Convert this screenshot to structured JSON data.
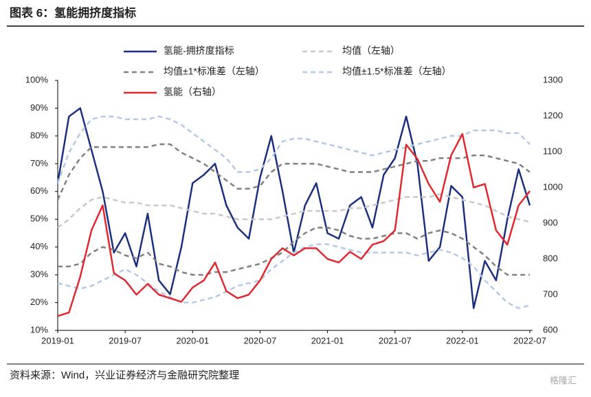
{
  "header": {
    "title": "图表 6：氢能拥挤度指标"
  },
  "footer": {
    "source": "资料来源：Wind，兴业证券经济与金融研究院整理",
    "watermark": "格隆汇"
  },
  "chart_data": {
    "type": "line",
    "categories": [
      "2019-01",
      null,
      null,
      null,
      null,
      null,
      "2019-07",
      null,
      null,
      null,
      null,
      null,
      "2020-01",
      null,
      null,
      null,
      null,
      null,
      "2020-07",
      null,
      null,
      null,
      null,
      null,
      "2021-01",
      null,
      null,
      null,
      null,
      null,
      "2021-07",
      null,
      null,
      null,
      null,
      null,
      "2022-01",
      null,
      null,
      null,
      null,
      null,
      "2022-07"
    ],
    "ylim": [
      10,
      100
    ],
    "yticks": [
      {
        "value": 10,
        "label": "10%"
      },
      {
        "value": 20,
        "label": "20%"
      },
      {
        "value": 30,
        "label": "30%"
      },
      {
        "value": 40,
        "label": "40%"
      },
      {
        "value": 50,
        "label": "50%"
      },
      {
        "value": 60,
        "label": "60%"
      },
      {
        "value": 70,
        "label": "70%"
      },
      {
        "value": 80,
        "label": "80%"
      },
      {
        "value": 90,
        "label": "90%"
      },
      {
        "value": 100,
        "label": "100%"
      }
    ],
    "y2lim": [
      600,
      1300
    ],
    "y2ticks": [
      600,
      700,
      800,
      900,
      1000,
      1100,
      1200,
      1300
    ],
    "series": [
      {
        "name": "氢能-拥挤度指标",
        "color": "#1a2f80",
        "style": "solid",
        "values": [
          63,
          87,
          90,
          75,
          60,
          38,
          45,
          33,
          52,
          28,
          23,
          40,
          63,
          66,
          70,
          55,
          47,
          43,
          65,
          80,
          60,
          38,
          55,
          63,
          45,
          43,
          55,
          58,
          47,
          66,
          72,
          87,
          70,
          35,
          40,
          62,
          58,
          18,
          35,
          28,
          50,
          68,
          55
        ]
      },
      {
        "name": "均值（左轴）",
        "color": "#c8c8c8",
        "style": "dashed",
        "values": [
          47,
          50,
          54,
          57,
          58,
          57,
          56,
          56,
          55,
          55,
          55,
          54,
          53,
          52,
          52,
          51,
          50,
          50,
          50,
          50,
          51,
          52,
          53,
          53,
          53,
          53,
          54,
          54,
          55,
          56,
          57,
          58,
          58,
          58,
          59,
          58,
          57,
          56,
          55,
          53,
          51,
          50,
          49
        ]
      },
      {
        "name": "均值±1*标准差（左轴）",
        "color": "#808080",
        "style": "dashed",
        "values": [
          57,
          66,
          72,
          76,
          76,
          76,
          76,
          76,
          76,
          77,
          77,
          74,
          72,
          70,
          67,
          64,
          61,
          61,
          62,
          67,
          70,
          70,
          70,
          70,
          69,
          68,
          67,
          67,
          67,
          68,
          69,
          70,
          71,
          71,
          72,
          72,
          72,
          73,
          73,
          72,
          71,
          70,
          67
        ]
      },
      {
        "name": "均值±1*标准差（左轴）",
        "color": "#808080",
        "style": "dashed",
        "values": [
          33,
          33,
          34,
          38,
          40,
          39,
          37,
          36,
          38,
          34,
          33,
          31,
          30,
          30,
          31,
          31,
          32,
          33,
          34,
          36,
          38,
          42,
          45,
          47,
          47,
          46,
          44,
          43,
          43,
          44,
          45,
          45,
          43,
          45,
          46,
          45,
          43,
          40,
          37,
          33,
          30,
          30,
          30
        ]
      },
      {
        "name": "均值±1.5*标准差（左轴）",
        "color": "#b4c7e7",
        "style": "dashed",
        "values": [
          63,
          74,
          81,
          86,
          87,
          87,
          86,
          86,
          86,
          87,
          86,
          84,
          81,
          78,
          75,
          72,
          67,
          67,
          68,
          72,
          78,
          79,
          79,
          78,
          77,
          76,
          75,
          74,
          73,
          74,
          75,
          76,
          77,
          78,
          79,
          80,
          80,
          82,
          82,
          82,
          81,
          81,
          77
        ]
      },
      {
        "name": "均值±1.5*标准差（左轴）",
        "color": "#b4c7e7",
        "style": "dashed",
        "values": [
          27,
          26,
          25,
          26,
          28,
          30,
          32,
          30,
          27,
          24,
          22,
          20,
          20,
          21,
          22,
          24,
          26,
          27,
          28,
          32,
          35,
          38,
          40,
          41,
          41,
          40,
          39,
          38,
          38,
          38,
          38,
          38,
          37,
          38,
          39,
          38,
          36,
          33,
          28,
          24,
          20,
          18,
          19
        ]
      },
      {
        "name": "氢能（右轴）",
        "color": "#e0282e",
        "style": "solid",
        "axis": "y2",
        "values": [
          640,
          650,
          750,
          880,
          950,
          760,
          740,
          700,
          730,
          700,
          690,
          680,
          720,
          740,
          790,
          710,
          690,
          700,
          740,
          800,
          830,
          810,
          830,
          830,
          800,
          790,
          820,
          800,
          840,
          850,
          880,
          1120,
          1080,
          1010,
          960,
          1090,
          1150,
          1000,
          1010,
          880,
          840,
          950,
          990
        ]
      }
    ]
  }
}
